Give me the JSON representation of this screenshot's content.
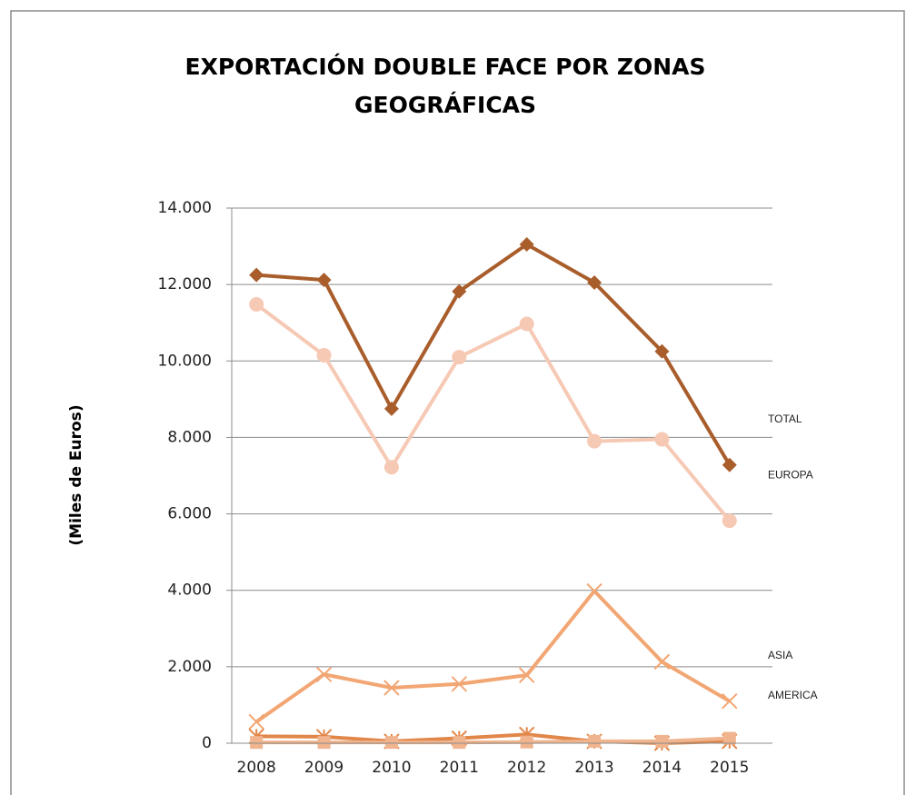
{
  "chart_data": {
    "type": "line",
    "title": [
      "EXPORTACIÓN DOUBLE FACE POR ZONAS",
      "GEOGRÁFICAS"
    ],
    "y_label": "(Miles de Euros)",
    "categories": [
      "2008",
      "2009",
      "2010",
      "2011",
      "2012",
      "2013",
      "2014",
      "2015"
    ],
    "series": [
      {
        "name": "TOTAL",
        "color": "#a95d2b",
        "marker": "diamond",
        "values": [
          12250,
          12120,
          8750,
          11820,
          13050,
          12050,
          10250,
          7280
        ]
      },
      {
        "name": "EUROPA",
        "color": "#f6c9b5",
        "marker": "circle",
        "values": [
          11480,
          10150,
          7220,
          10100,
          10970,
          7900,
          7950,
          5820
        ]
      },
      {
        "name": "ASIA",
        "color": "#f2a673",
        "marker": "x",
        "values": [
          560,
          1800,
          1450,
          1550,
          1780,
          3980,
          2130,
          1100
        ]
      },
      {
        "name": "AMERICA",
        "color": "#e2874a",
        "marker": "star",
        "values": [
          180,
          170,
          50,
          130,
          230,
          50,
          0,
          50
        ]
      },
      {
        "color": "#f0b48e",
        "marker": "square",
        "values": [
          20,
          20,
          20,
          20,
          30,
          50,
          50,
          130
        ]
      }
    ],
    "ylim": [
      0,
      14000
    ],
    "yticks": [
      0,
      {
        "value": 2000,
        "label": "2.000"
      },
      {
        "value": 4000,
        "label": "4.000"
      },
      {
        "value": 6000,
        "label": "6.000"
      },
      {
        "value": 8000,
        "label": "8.000"
      },
      {
        "value": 10000,
        "label": "10.000"
      },
      {
        "value": 12000,
        "label": "12.000"
      },
      {
        "value": 14000,
        "label": "14.000"
      }
    ],
    "grid": true
  }
}
